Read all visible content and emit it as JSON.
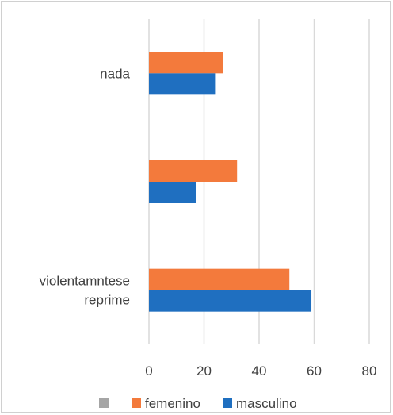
{
  "chart_data": {
    "type": "bar",
    "orientation": "horizontal",
    "categories": [
      [
        "violentamntese",
        "reprime"
      ],
      [
        ""
      ],
      [
        "nada"
      ]
    ],
    "series": [
      {
        "name": "masculino",
        "values": [
          59,
          17,
          24
        ],
        "color": "#1f6fc0"
      },
      {
        "name": "femenino",
        "values": [
          51,
          32,
          27
        ],
        "color": "#f37a3c"
      }
    ],
    "legend_extra": {
      "name": "",
      "color": "#a5a5a5"
    },
    "xlim": [
      0,
      80
    ],
    "xticks": [
      0,
      20,
      40,
      60,
      80
    ],
    "grid": true,
    "gridline_color": "#d9d9d9",
    "legend_position": "bottom",
    "title": "",
    "xlabel": "",
    "ylabel": ""
  }
}
